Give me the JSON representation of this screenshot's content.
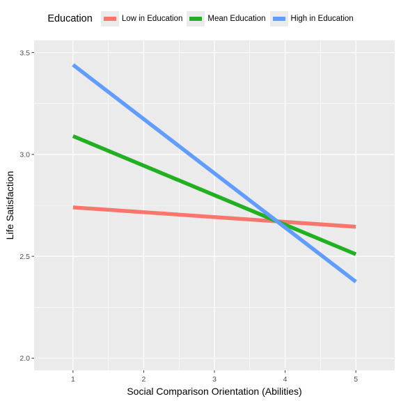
{
  "legend": {
    "title": "Education",
    "items": [
      {
        "label": "Low in Education",
        "color": "#f8766d"
      },
      {
        "label": "Mean Education",
        "color": "#22b022"
      },
      {
        "label": "High in Education",
        "color": "#619cff"
      }
    ]
  },
  "chart_data": {
    "type": "line",
    "xlabel": "Social Comparison Orientation (Abilities)",
    "ylabel": "Life Satisfaction",
    "xlim": [
      0.45,
      5.55
    ],
    "ylim": [
      1.94,
      3.56
    ],
    "x_ticks": [
      1,
      2,
      3,
      4,
      5
    ],
    "y_ticks": [
      2.0,
      2.5,
      3.0,
      3.5
    ],
    "x_tick_labels": [
      "1",
      "2",
      "3",
      "4",
      "5"
    ],
    "y_tick_labels": [
      "2.0",
      "2.5",
      "3.0",
      "3.5"
    ],
    "grid": true,
    "legend_position": "top",
    "series": [
      {
        "name": "Low in Education",
        "color": "#f8766d",
        "x": [
          1,
          5
        ],
        "y": [
          2.74,
          2.645
        ]
      },
      {
        "name": "Mean Education",
        "color": "#22b022",
        "x": [
          1,
          5
        ],
        "y": [
          3.09,
          2.51
        ]
      },
      {
        "name": "High in Education",
        "color": "#619cff",
        "x": [
          1,
          5
        ],
        "y": [
          3.44,
          2.375
        ]
      }
    ]
  }
}
